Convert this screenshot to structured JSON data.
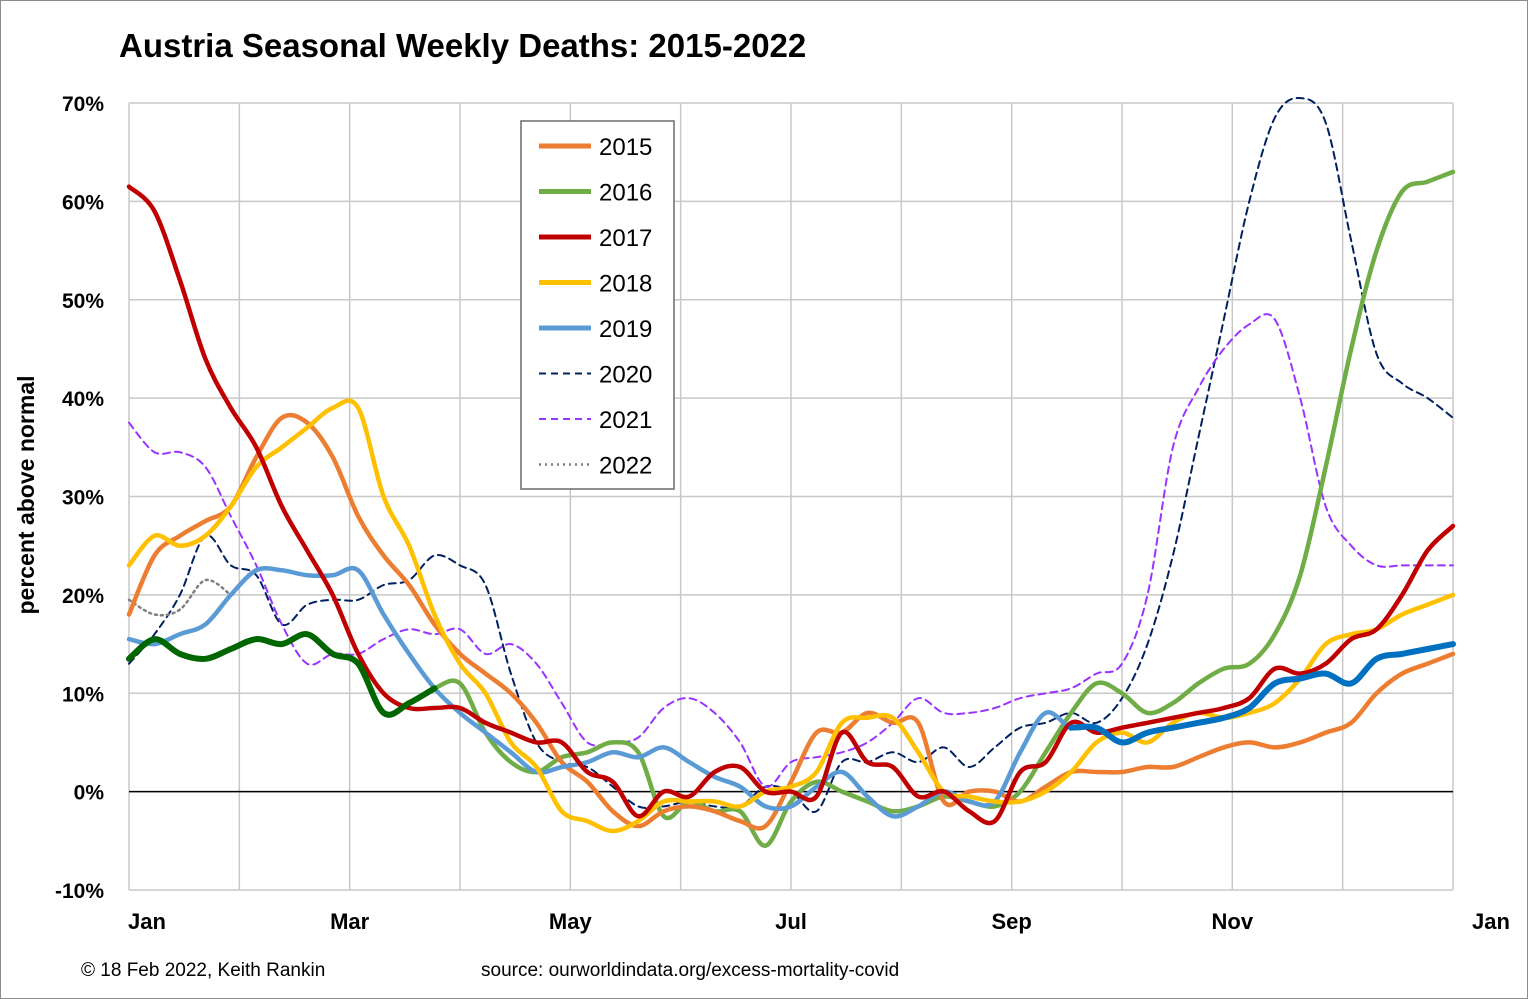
{
  "chart_data": {
    "type": "line",
    "title": "Austria Seasonal Weekly Deaths: 2015-2022",
    "ylabel": "percent above normal",
    "xlabel": "",
    "ylim": [
      -10,
      70
    ],
    "yticks": [
      "-10%",
      "0%",
      "10%",
      "20%",
      "30%",
      "40%",
      "50%",
      "60%",
      "70%"
    ],
    "xticks": [
      "Jan",
      "Mar",
      "May",
      "Jul",
      "Sep",
      "Nov",
      "Jan"
    ],
    "grid": "on",
    "legend_position": "top-center",
    "x_unit": "week of year",
    "series": [
      {
        "name": "2015",
        "color": "#ED7D31",
        "style": "solid",
        "x": [
          1,
          2,
          3,
          4,
          5,
          6,
          7,
          8,
          9,
          10,
          11,
          12,
          13,
          14,
          15,
          16,
          17,
          18,
          19,
          20,
          21,
          22,
          23,
          24,
          25,
          26,
          27,
          28,
          29,
          30,
          31,
          32,
          33,
          34,
          35,
          36,
          37,
          38,
          39,
          40,
          41,
          42,
          43,
          44,
          45,
          46,
          47,
          48,
          49,
          50,
          51,
          52,
          53
        ],
        "y": [
          18,
          24,
          26,
          27.5,
          29,
          34,
          38,
          37.5,
          34,
          28,
          24,
          21,
          17,
          14,
          12,
          10,
          7,
          3,
          1,
          -2,
          -3.5,
          -2,
          -1.5,
          -2,
          -3,
          -3.5,
          1,
          6,
          6,
          8,
          7,
          7,
          -1,
          0,
          0,
          -1,
          0.5,
          2,
          2,
          2,
          2.5,
          2.5,
          3.5,
          4.5,
          5,
          4.5,
          5,
          6,
          7,
          10,
          12,
          13,
          14
        ]
      },
      {
        "name": "2016",
        "color": "#70AD47",
        "style": "solid",
        "x": [
          1,
          2,
          3,
          4,
          5,
          6,
          7,
          8,
          9,
          10,
          11,
          12,
          13,
          14,
          15,
          16,
          17,
          18,
          19,
          20,
          21,
          22,
          23,
          24,
          25,
          26,
          27,
          28,
          29,
          30,
          31,
          32,
          33,
          34,
          35,
          36,
          37,
          38,
          39,
          40,
          41,
          42,
          43,
          44,
          45,
          46,
          47,
          48,
          49,
          50,
          51,
          52,
          53
        ],
        "y": [
          13.5,
          15.5,
          14,
          13.5,
          14.5,
          15.5,
          15,
          16,
          14,
          13,
          8,
          9,
          10.5,
          11,
          6,
          3,
          2,
          3.5,
          4,
          5,
          4,
          -2.5,
          -1,
          -2,
          -2,
          -5.5,
          -1,
          1,
          0,
          -1,
          -2,
          -1.5,
          -0.5,
          -1,
          -1.5,
          0,
          4,
          8,
          11,
          10,
          8,
          9,
          11,
          12.5,
          13,
          16,
          22,
          33,
          45,
          55,
          61,
          62,
          63
        ]
      },
      {
        "name": "2017",
        "color": "#C00000",
        "style": "solid",
        "x": [
          1,
          2,
          3,
          4,
          5,
          6,
          7,
          8,
          9,
          10,
          11,
          12,
          13,
          14,
          15,
          16,
          17,
          18,
          19,
          20,
          21,
          22,
          23,
          24,
          25,
          26,
          27,
          28,
          29,
          30,
          31,
          32,
          33,
          34,
          35,
          36,
          37,
          38,
          39,
          40,
          41,
          42,
          43,
          44,
          45,
          46,
          47,
          48,
          49,
          50,
          51,
          52,
          53
        ],
        "y": [
          61.5,
          59,
          52,
          44,
          39,
          35,
          29,
          24.5,
          20,
          14,
          10,
          8.5,
          8.5,
          8.5,
          7,
          6,
          5,
          5,
          2,
          1,
          -2.5,
          0,
          -0.5,
          2,
          2.5,
          0,
          0,
          -0.5,
          6,
          3,
          2.5,
          -0.5,
          0,
          -2,
          -3,
          2,
          3,
          7,
          6,
          6.5,
          7,
          7.5,
          8,
          8.5,
          9.5,
          12.5,
          12,
          13,
          15.5,
          16.5,
          20,
          24.5,
          27
        ]
      },
      {
        "name": "2018",
        "color": "#FFC000",
        "style": "solid",
        "x": [
          1,
          2,
          3,
          4,
          5,
          6,
          7,
          8,
          9,
          10,
          11,
          12,
          13,
          14,
          15,
          16,
          17,
          18,
          19,
          20,
          21,
          22,
          23,
          24,
          25,
          26,
          27,
          28,
          29,
          30,
          31,
          32,
          33,
          34,
          35,
          36,
          37,
          38,
          39,
          40,
          41,
          42,
          43,
          44,
          45,
          46,
          47,
          48,
          49,
          50,
          51,
          52,
          53
        ],
        "y": [
          23,
          26,
          25,
          26,
          29,
          33,
          35,
          37,
          39,
          39,
          30,
          25,
          18,
          13,
          10,
          5,
          2.5,
          -2,
          -3,
          -4,
          -3,
          -1,
          -1,
          -1,
          -1.5,
          0,
          0.5,
          2,
          7,
          7.5,
          7.5,
          4,
          0,
          -0.5,
          -1,
          -1,
          0,
          2,
          5,
          6,
          5,
          7,
          8,
          7.5,
          8,
          9,
          11.5,
          15,
          16,
          16.5,
          18,
          19,
          20
        ]
      },
      {
        "name": "2019",
        "color": "#5B9BD5",
        "style": "solid",
        "x": [
          1,
          2,
          3,
          4,
          5,
          6,
          7,
          8,
          9,
          10,
          11,
          12,
          13,
          14,
          15,
          16,
          17,
          18,
          19,
          20,
          21,
          22,
          23,
          24,
          25,
          26,
          27,
          28,
          29,
          30,
          31,
          32,
          33,
          34,
          35,
          36,
          37,
          38,
          39,
          40,
          41,
          42,
          43,
          44,
          45,
          46,
          47,
          48,
          49,
          50,
          51,
          52,
          53
        ],
        "y": [
          15.5,
          15,
          16,
          17,
          20,
          22.5,
          22.5,
          22,
          22,
          22.5,
          18,
          14,
          10.5,
          8,
          6,
          4,
          2,
          2.5,
          3,
          4,
          3.5,
          4.5,
          3,
          1.5,
          0.5,
          -1.5,
          -1.5,
          0.5,
          2,
          -0.5,
          -2.5,
          -1.5,
          0,
          -1,
          -1,
          4,
          8,
          6.5,
          6.5,
          5,
          6,
          6.5,
          7,
          7.5,
          8.5,
          11,
          11.5,
          12,
          11,
          13.5,
          14,
          14.5,
          15
        ]
      },
      {
        "name": "2020",
        "color": "#002060",
        "style": "dash",
        "x": [
          1,
          2,
          3,
          4,
          5,
          6,
          7,
          8,
          9,
          10,
          11,
          12,
          13,
          14,
          15,
          16,
          17,
          18,
          19,
          20,
          21,
          22,
          23,
          24,
          25,
          26,
          27,
          28,
          29,
          30,
          31,
          32,
          33,
          34,
          35,
          36,
          37,
          38,
          39,
          40,
          41,
          42,
          43,
          44,
          45,
          46,
          47,
          48,
          49,
          50,
          51,
          52,
          53
        ],
        "y": [
          13,
          16,
          20,
          26,
          23,
          22,
          17,
          19,
          19.5,
          19.5,
          21,
          21.5,
          24,
          23,
          21,
          12,
          5,
          3,
          2.5,
          0.5,
          -1.5,
          -1.5,
          -1,
          -1.5,
          -1.5,
          0.5,
          0,
          -2,
          3,
          3,
          4,
          3,
          4.5,
          2.5,
          4.5,
          6.5,
          7,
          8,
          7,
          9.5,
          15,
          24,
          36,
          48,
          60,
          68.5,
          70.5,
          68,
          56,
          44.5,
          41.5,
          40,
          38
        ]
      },
      {
        "name": "2021",
        "color": "#9933FF",
        "style": "dash",
        "x": [
          1,
          2,
          3,
          4,
          5,
          6,
          7,
          8,
          9,
          10,
          11,
          12,
          13,
          14,
          15,
          16,
          17,
          18,
          19,
          20,
          21,
          22,
          23,
          24,
          25,
          26,
          27,
          28,
          29,
          30,
          31,
          32,
          33,
          34,
          35,
          36,
          37,
          38,
          39,
          40,
          41,
          42,
          43,
          44,
          45,
          46,
          47,
          48,
          49,
          50,
          51,
          52,
          53
        ],
        "y": [
          37.5,
          34.5,
          34.5,
          33,
          28,
          23,
          17,
          13,
          14,
          14,
          15.5,
          16.5,
          16,
          16.5,
          14,
          15,
          13,
          9,
          5,
          5,
          5.5,
          8.5,
          9.5,
          8,
          5,
          0.5,
          3,
          3.5,
          4,
          5,
          7,
          9.5,
          8,
          8,
          8.5,
          9.5,
          10,
          10.5,
          12,
          13,
          20,
          35,
          41,
          45,
          47.5,
          48,
          40,
          29,
          25,
          23,
          23,
          23,
          23
        ]
      },
      {
        "name": "2022",
        "color": "#7F7F7F",
        "style": "dot",
        "x": [
          1,
          2,
          3,
          4,
          5
        ],
        "y": [
          19.5,
          18,
          18.5,
          21.5,
          20
        ]
      }
    ],
    "highlights": [
      {
        "series": "2016",
        "x_start": 1,
        "x_end": 13,
        "color": "#006600"
      },
      {
        "series": "2019",
        "x_start": 38,
        "x_end": 53,
        "color": "#0070C0"
      }
    ]
  },
  "footer": {
    "copyright": "© 18 Feb 2022, Keith Rankin",
    "source": "source: ourworldindata.org/excess-mortality-covid"
  }
}
